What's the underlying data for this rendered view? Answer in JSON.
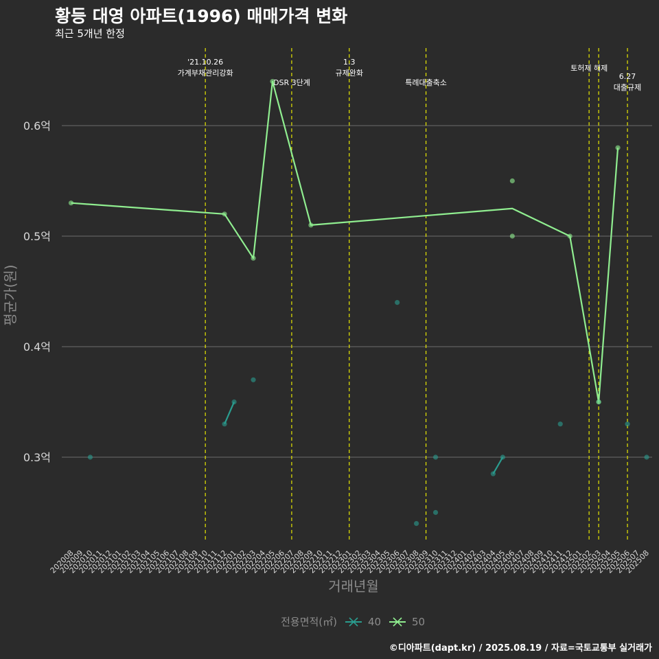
{
  "title": "황등 대영 아파트(1996) 매매가격 변화",
  "subtitle": "최근 5개년 한정",
  "caption": "©디아파트(dapt.kr) / 2025.08.19 / 자료=국토교통부 실거래가",
  "colors": {
    "background": "#2b2b2b",
    "grid": "#6e6e6e",
    "event_line": "#e8e800",
    "series_40": "#2a9d8f",
    "series_50": "#90ee90"
  },
  "chart_data": {
    "type": "line",
    "title": "황등 대영 아파트(1996) 매매가격 변화",
    "subtitle": "최근 5개년 한정",
    "xlabel": "거래년월",
    "ylabel": "평균가(원)",
    "x_categories": [
      "202008",
      "202009",
      "202010",
      "202011",
      "202012",
      "202101",
      "202102",
      "202103",
      "202104",
      "202105",
      "202106",
      "202107",
      "202108",
      "202109",
      "202110",
      "202111",
      "202112",
      "202201",
      "202202",
      "202203",
      "202204",
      "202205",
      "202206",
      "202207",
      "202208",
      "202209",
      "202210",
      "202211",
      "202212",
      "202301",
      "202302",
      "202303",
      "202304",
      "202305",
      "202306",
      "202307",
      "202308",
      "202309",
      "202310",
      "202311",
      "202312",
      "202401",
      "202402",
      "202403",
      "202404",
      "202405",
      "202406",
      "202407",
      "202408",
      "202409",
      "202410",
      "202411",
      "202412",
      "202501",
      "202502",
      "202503",
      "202504",
      "202505",
      "202506",
      "202507",
      "202508"
    ],
    "y_ticks": [
      0.3,
      0.4,
      0.5,
      0.6
    ],
    "y_tick_labels": [
      "0.3억",
      "0.4억",
      "0.5억",
      "0.6억"
    ],
    "ylim": [
      0.22,
      0.66
    ],
    "grid": true,
    "legend": {
      "title": "전용면적(㎡)",
      "position": "bottom"
    },
    "series": [
      {
        "name": "40",
        "color": "#2a9d8f",
        "line": [
          [
            "202112",
            0.33
          ],
          [
            "202201",
            0.35
          ],
          [
            "202404",
            0.285
          ],
          [
            "202405",
            0.3
          ]
        ],
        "line_segments": [
          [
            0,
            1
          ],
          [
            2,
            3
          ]
        ],
        "points": [
          [
            "202010",
            0.3
          ],
          [
            "202112",
            0.33
          ],
          [
            "202201",
            0.35
          ],
          [
            "202203",
            0.37
          ],
          [
            "202306",
            0.44
          ],
          [
            "202308",
            0.24
          ],
          [
            "202310",
            0.3
          ],
          [
            "202310",
            0.25
          ],
          [
            "202404",
            0.285
          ],
          [
            "202405",
            0.3
          ],
          [
            "202411",
            0.33
          ],
          [
            "202503",
            0.35
          ],
          [
            "202506",
            0.33
          ],
          [
            "202508",
            0.3
          ]
        ]
      },
      {
        "name": "50",
        "color": "#90ee90",
        "line": [
          [
            "202008",
            0.53
          ],
          [
            "202112",
            0.52
          ],
          [
            "202203",
            0.48
          ],
          [
            "202205",
            0.64
          ],
          [
            "202209",
            0.51
          ],
          [
            "202406",
            0.525
          ],
          [
            "202412",
            0.5
          ],
          [
            "202503",
            0.35
          ],
          [
            "202505",
            0.58
          ]
        ],
        "points": [
          [
            "202008",
            0.53
          ],
          [
            "202112",
            0.52
          ],
          [
            "202203",
            0.48
          ],
          [
            "202205",
            0.64
          ],
          [
            "202209",
            0.51
          ],
          [
            "202406",
            0.55
          ],
          [
            "202406",
            0.5
          ],
          [
            "202412",
            0.5
          ],
          [
            "202503",
            0.35
          ],
          [
            "202505",
            0.58
          ]
        ]
      }
    ],
    "events": [
      {
        "month": "202110",
        "label_lines": [
          "'21.10.26",
          "가계부채관리강화"
        ],
        "label_level": 1
      },
      {
        "month": "202207",
        "label_lines": [
          "DSR 3단계"
        ],
        "label_level": 3
      },
      {
        "month": "202301",
        "label_lines": [
          "1.3",
          "규제완화"
        ],
        "label_level": 1
      },
      {
        "month": "202309",
        "label_lines": [
          "특례대출축소"
        ],
        "label_level": 3
      },
      {
        "month": "202502",
        "label_lines": [
          "토허제 해제"
        ],
        "label_level": 2
      },
      {
        "month": "202503",
        "label_lines": [],
        "label_level": 0
      },
      {
        "month": "202506",
        "label_lines": [
          "6.27",
          "대출규제"
        ],
        "label_level": 2.5
      }
    ]
  }
}
